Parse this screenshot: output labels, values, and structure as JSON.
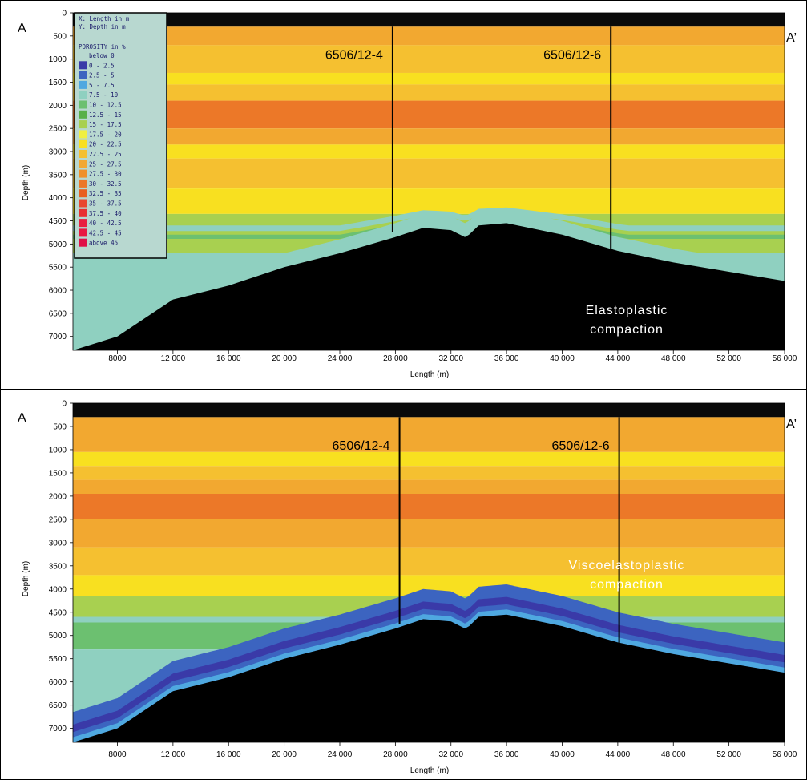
{
  "chart_data": [
    {
      "type": "heatmap",
      "section_start": "A",
      "section_end": "A’",
      "xlabel": "Length (m)",
      "ylabel": "Depth (m)",
      "xticks": [
        "8000",
        "12 000",
        "16 000",
        "20 000",
        "24 000",
        "28 000",
        "32 000",
        "36 000",
        "40 000",
        "44 000",
        "48 000",
        "52 000",
        "56 000"
      ],
      "yticks": [
        "0",
        "500",
        "1000",
        "1500",
        "2000",
        "2500",
        "3000",
        "3500",
        "4000",
        "4500",
        "5000",
        "5500",
        "6000",
        "6500",
        "7000"
      ],
      "xlim": [
        4800,
        56000
      ],
      "ylim": [
        0,
        7300
      ],
      "wells": [
        {
          "name": "6506/12-4",
          "x": 27800,
          "top": 300,
          "bottom": 4750
        },
        {
          "name": "6506/12-6",
          "x": 43500,
          "top": 300,
          "bottom": 5200
        }
      ],
      "basement_top": {
        "x": [
          4800,
          8000,
          12000,
          16000,
          20000,
          24000,
          28000,
          30000,
          32000,
          33000,
          33300,
          34000,
          36000,
          40000,
          44000,
          48000,
          52000,
          56000
        ],
        "depth": [
          7300,
          7000,
          6200,
          5900,
          5500,
          5200,
          4850,
          4650,
          4700,
          4850,
          4800,
          4600,
          4550,
          4800,
          5150,
          5400,
          5600,
          5800
        ]
      },
      "annotation": "Elastoplastic compaction",
      "legend": {
        "header": [
          "X: Length in m",
          "Y: Depth in m"
        ],
        "title": "POROSITY in %",
        "entries": [
          {
            "label": "below 0",
            "color": "#b8d8d0"
          },
          {
            "label": "0 - 2.5",
            "color": "#3a3aa8"
          },
          {
            "label": "2.5 - 5",
            "color": "#3c64c0"
          },
          {
            "label": "5 - 7.5",
            "color": "#4fa8e0"
          },
          {
            "label": "7.5 - 10",
            "color": "#8fd0c0"
          },
          {
            "label": "10 - 12.5",
            "color": "#6cc070"
          },
          {
            "label": "12.5 - 15",
            "color": "#58b048"
          },
          {
            "label": "15 - 17.5",
            "color": "#a8d050"
          },
          {
            "label": "17.5 - 20",
            "color": "#f0f040"
          },
          {
            "label": "20 - 22.5",
            "color": "#f8e020"
          },
          {
            "label": "22.5 - 25",
            "color": "#f5c030"
          },
          {
            "label": "25 - 27.5",
            "color": "#f2a830"
          },
          {
            "label": "27.5 - 30",
            "color": "#f09028"
          },
          {
            "label": "30 - 32.5",
            "color": "#ec7828"
          },
          {
            "label": "32.5 - 35",
            "color": "#e86020"
          },
          {
            "label": "35 - 37.5",
            "color": "#e84830"
          },
          {
            "label": "37.5 - 40",
            "color": "#e83030"
          },
          {
            "label": "40 - 42.5",
            "color": "#e82040"
          },
          {
            "label": "42.5 - 45",
            "color": "#e81840"
          },
          {
            "label": "above 45",
            "color": "#e01048"
          }
        ]
      }
    },
    {
      "type": "heatmap",
      "section_start": "A",
      "section_end": "A’",
      "xlabel": "Length (m)",
      "ylabel": "Depth (m)",
      "xticks": [
        "8000",
        "12 000",
        "16 000",
        "20 000",
        "24 000",
        "28 000",
        "32 000",
        "36 000",
        "40 000",
        "44 000",
        "48 000",
        "52 000",
        "56 000"
      ],
      "yticks": [
        "0",
        "500",
        "1000",
        "1500",
        "2000",
        "2500",
        "3000",
        "3500",
        "4000",
        "4500",
        "5000",
        "5500",
        "6000",
        "6500",
        "7000"
      ],
      "xlim": [
        4800,
        56000
      ],
      "ylim": [
        0,
        7300
      ],
      "wells": [
        {
          "name": "6506/12-4",
          "x": 28300,
          "top": 300,
          "bottom": 4750
        },
        {
          "name": "6506/12-6",
          "x": 44100,
          "top": 300,
          "bottom": 5200
        }
      ],
      "basement_top": {
        "x": [
          4800,
          8000,
          12000,
          16000,
          20000,
          24000,
          28000,
          30000,
          32000,
          33000,
          33300,
          34000,
          36000,
          40000,
          44000,
          48000,
          52000,
          56000
        ],
        "depth": [
          7300,
          7000,
          6200,
          5900,
          5500,
          5200,
          4850,
          4650,
          4700,
          4850,
          4800,
          4600,
          4550,
          4800,
          5150,
          5400,
          5600,
          5800
        ]
      },
      "annotation": "Viscoelastoplastic compaction"
    }
  ],
  "annotations": {
    "panel1_line1": "Elastoplastic",
    "panel1_line2": "compaction",
    "panel2_line1": "Viscoelastoplastic",
    "panel2_line2": "compaction"
  }
}
